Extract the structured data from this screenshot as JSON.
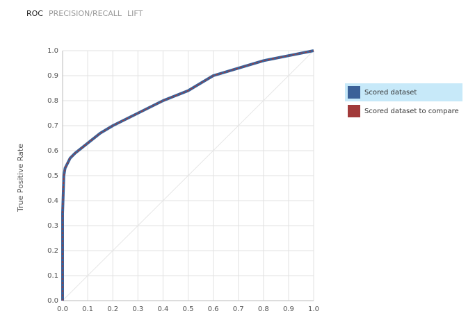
{
  "tabs": [
    "ROC",
    "PRECISION/RECALL",
    "LIFT"
  ],
  "active_tab": 0,
  "chart_data": {
    "type": "line",
    "y_label": "True Positive Rate",
    "x": [
      0,
      0,
      0.005,
      0.01,
      0.02,
      0.03,
      0.05,
      0.1,
      0.15,
      0.2,
      0.3,
      0.4,
      0.5,
      0.6,
      0.7,
      0.8,
      0.9,
      1.0
    ],
    "series": [
      {
        "name": "Scored dataset",
        "color": "#3b6198",
        "values": [
          0,
          0.35,
          0.5,
          0.53,
          0.55,
          0.57,
          0.59,
          0.63,
          0.67,
          0.7,
          0.75,
          0.8,
          0.84,
          0.9,
          0.93,
          0.96,
          0.98,
          1.0
        ]
      },
      {
        "name": "Scored dataset to compare",
        "color": "#a23a3a",
        "values": [
          0,
          0.35,
          0.5,
          0.53,
          0.55,
          0.57,
          0.59,
          0.63,
          0.67,
          0.7,
          0.75,
          0.8,
          0.84,
          0.9,
          0.93,
          0.96,
          0.98,
          1.0
        ]
      }
    ],
    "xlim": [
      0,
      1
    ],
    "ylim": [
      0,
      1
    ],
    "xticks": [
      {
        "value": 0,
        "label": "0.0"
      },
      0.1,
      0.2,
      0.3,
      0.4,
      0.5,
      0.6,
      0.7,
      0.8,
      0.9,
      {
        "value": 1,
        "label": "1.0"
      }
    ],
    "yticks": [
      {
        "value": 0,
        "label": "0.0"
      },
      0.1,
      0.2,
      0.3,
      0.4,
      0.5,
      0.6,
      0.7,
      0.8,
      0.9,
      {
        "value": 1,
        "label": "1.0"
      }
    ],
    "grid": true,
    "diagonal": true,
    "legend_highlight": 0
  }
}
